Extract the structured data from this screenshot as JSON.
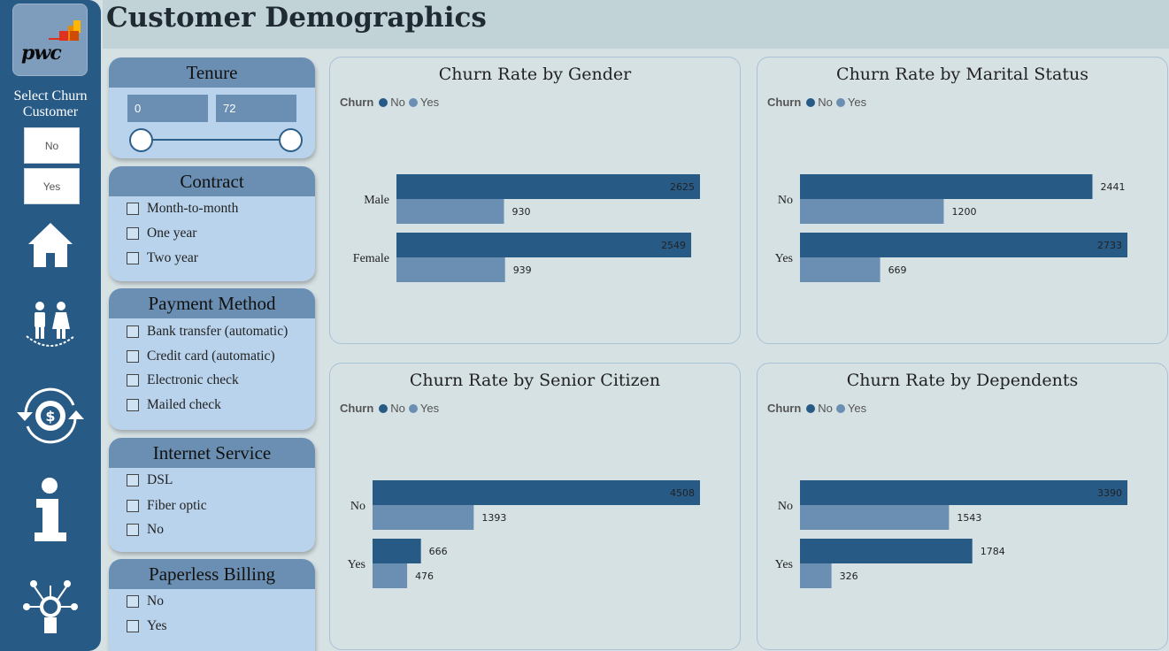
{
  "header": {
    "title": "Customer Demographics"
  },
  "logo": {
    "text": "pwc"
  },
  "sidebar": {
    "select_label": "Select Churn Customer",
    "buttons": [
      "No",
      "Yes"
    ],
    "icons": [
      "home-icon",
      "people-icon",
      "money-cycle-icon",
      "info-icon",
      "idea-network-icon"
    ]
  },
  "slicers": {
    "tenure": {
      "title": "Tenure",
      "min": "0",
      "max": "72"
    },
    "contract": {
      "title": "Contract",
      "options": [
        "Month-to-month",
        "One year",
        "Two year"
      ]
    },
    "payment": {
      "title": "Payment Method",
      "options": [
        "Bank transfer (automatic)",
        "Credit card (automatic)",
        "Electronic check",
        "Mailed check"
      ]
    },
    "internet": {
      "title": "Internet Service",
      "options": [
        "DSL",
        "Fiber optic",
        "No"
      ]
    },
    "paperless": {
      "title": "Paperless Billing",
      "options": [
        "No",
        "Yes"
      ]
    }
  },
  "colors": {
    "no": "#285a86",
    "yes": "#6b8fb2"
  },
  "chart_data": [
    {
      "type": "bar",
      "title": "Churn Rate by Gender",
      "legend_title": "Churn",
      "categories": [
        "Male",
        "Female"
      ],
      "series": [
        {
          "name": "No",
          "values": [
            2625,
            2549
          ]
        },
        {
          "name": "Yes",
          "values": [
            930,
            939
          ]
        }
      ],
      "xmax": 2625
    },
    {
      "type": "bar",
      "title": "Churn Rate by Marital Status",
      "legend_title": "Churn",
      "categories": [
        "No",
        "Yes"
      ],
      "series": [
        {
          "name": "No",
          "values": [
            2441,
            2733
          ]
        },
        {
          "name": "Yes",
          "values": [
            1200,
            669
          ]
        }
      ],
      "xmax": 2733
    },
    {
      "type": "bar",
      "title": "Churn Rate by Senior Citizen",
      "legend_title": "Churn",
      "categories": [
        "No",
        "Yes"
      ],
      "series": [
        {
          "name": "No",
          "values": [
            4508,
            666
          ]
        },
        {
          "name": "Yes",
          "values": [
            1393,
            476
          ]
        }
      ],
      "xmax": 4508
    },
    {
      "type": "bar",
      "title": "Churn Rate by Dependents",
      "legend_title": "Churn",
      "categories": [
        "No",
        "Yes"
      ],
      "series": [
        {
          "name": "No",
          "values": [
            3390,
            1784
          ]
        },
        {
          "name": "Yes",
          "values": [
            1543,
            326
          ]
        }
      ],
      "xmax": 3390
    }
  ]
}
